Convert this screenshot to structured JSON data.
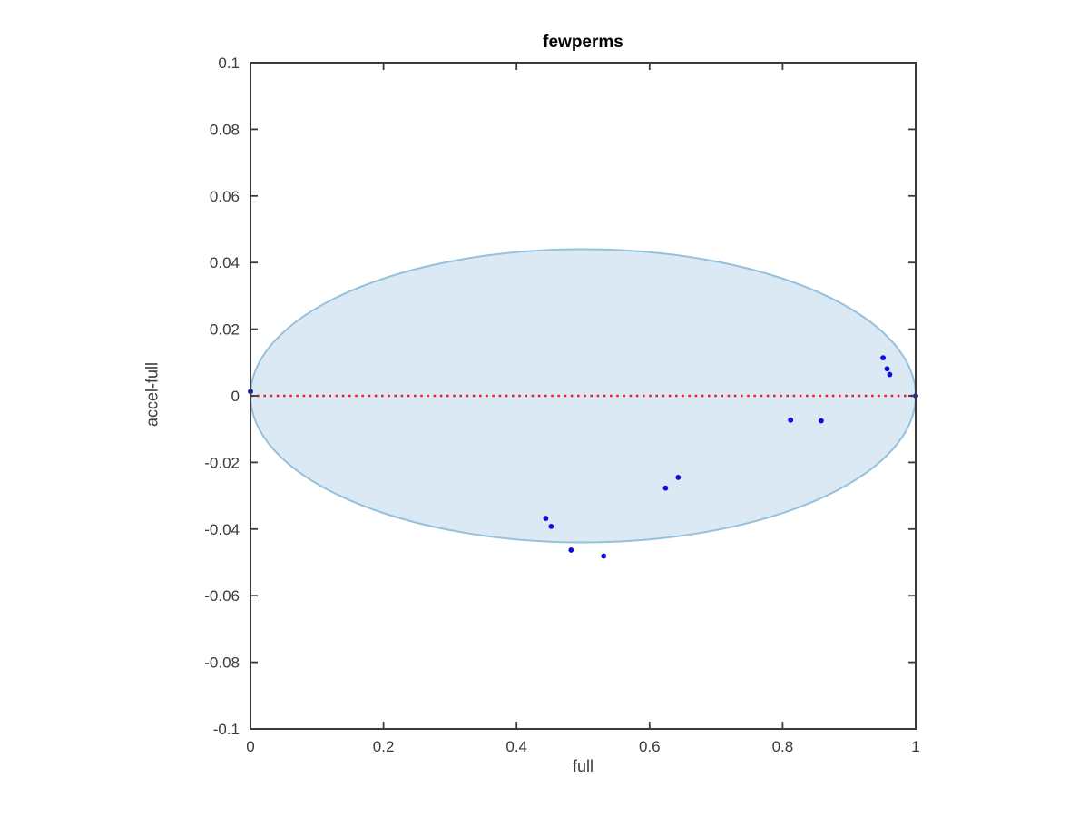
{
  "chart_data": {
    "type": "scatter",
    "title": "fewperms",
    "xlabel": "full",
    "ylabel": "accel-full",
    "xlim": [
      0,
      1
    ],
    "ylim": [
      -0.1,
      0.1
    ],
    "grid": false,
    "legend": null,
    "xticks": [
      0,
      0.2,
      0.4,
      0.6,
      0.8,
      1
    ],
    "xtick_labels": [
      "0",
      "0.2",
      "0.4",
      "0.6",
      "0.8",
      "1"
    ],
    "yticks": [
      0.1,
      0.08,
      0.06,
      0.04,
      0.02,
      0,
      -0.02,
      -0.04,
      -0.06,
      -0.08,
      -0.1
    ],
    "ytick_labels": [
      "0.1",
      "0.08",
      "0.06",
      "0.04",
      "0.02",
      "0",
      "-0.02",
      "-0.04",
      "-0.06",
      "-0.08",
      "-0.1"
    ],
    "points": [
      [
        0.0,
        0.0013
      ],
      [
        0.444,
        -0.0368
      ],
      [
        0.452,
        -0.0392
      ],
      [
        0.482,
        -0.0463
      ],
      [
        0.531,
        -0.0481
      ],
      [
        0.624,
        -0.0277
      ],
      [
        0.643,
        -0.0245
      ],
      [
        0.812,
        -0.0073
      ],
      [
        0.858,
        -0.0075
      ],
      [
        0.951,
        0.0114
      ],
      [
        0.957,
        0.0081
      ],
      [
        0.961,
        0.0064
      ],
      [
        1.0,
        0.0
      ]
    ],
    "marker_color": "#0d0de0",
    "marker_radius": 2.9,
    "zero_line": {
      "y": 0,
      "color": "#f5201b",
      "style": "dotted"
    },
    "envelope": {
      "shape": "ellipse",
      "center": [
        0.5,
        0
      ],
      "rx": 0.5,
      "ry": 0.044,
      "fill": "#dbe9f4",
      "edge": "#95c1dc"
    },
    "axis_color": "#3a3a3a",
    "text_color": "#3a3a3a",
    "background": "#ffffff"
  }
}
